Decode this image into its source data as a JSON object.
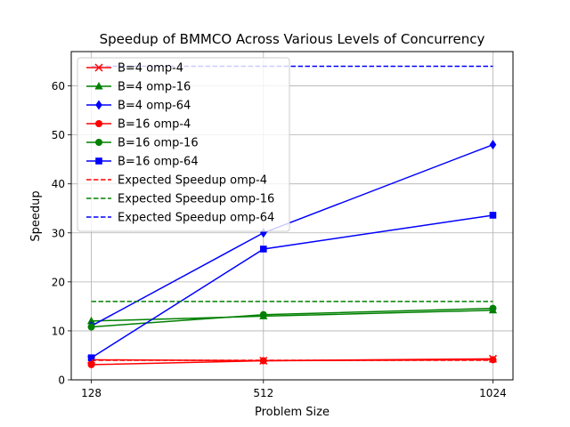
{
  "chart_data": {
    "type": "line",
    "title": "Speedup of BMMCO Across Various Levels of Concurrency",
    "xlabel": "Problem Size",
    "ylabel": "Speedup",
    "x": [
      128,
      512,
      1024
    ],
    "xticks": [
      "128",
      "512",
      "1024"
    ],
    "ylim": [
      0,
      67
    ],
    "yticks": [
      0,
      10,
      20,
      30,
      40,
      50,
      60
    ],
    "grid": true,
    "legend_position": "upper-left",
    "series": [
      {
        "name": "B=4 omp-4",
        "values": [
          4.1,
          3.9,
          4.3
        ],
        "color": "#ff0000",
        "marker": "x",
        "dash": false
      },
      {
        "name": "B=4 omp-16",
        "values": [
          12.0,
          13.0,
          14.2
        ],
        "color": "#008000",
        "marker": "triangle",
        "dash": false
      },
      {
        "name": "B=4 omp-64",
        "values": [
          11.0,
          30.0,
          48.0
        ],
        "color": "#0000ff",
        "marker": "diamond",
        "dash": false
      },
      {
        "name": "B=16 omp-4",
        "values": [
          3.1,
          3.9,
          4.1
        ],
        "color": "#ff0000",
        "marker": "circle",
        "dash": false
      },
      {
        "name": "B=16 omp-16",
        "values": [
          10.8,
          13.3,
          14.6
        ],
        "color": "#008000",
        "marker": "circle",
        "dash": false
      },
      {
        "name": "B=16 omp-64",
        "values": [
          4.5,
          26.7,
          33.6
        ],
        "color": "#0000ff",
        "marker": "square",
        "dash": false
      },
      {
        "name": "Expected Speedup omp-4",
        "values": [
          4,
          4,
          4
        ],
        "color": "#ff0000",
        "marker": "none",
        "dash": true
      },
      {
        "name": "Expected Speedup omp-16",
        "values": [
          16,
          16,
          16
        ],
        "color": "#008000",
        "marker": "none",
        "dash": true
      },
      {
        "name": "Expected Speedup omp-64",
        "values": [
          64,
          64,
          64
        ],
        "color": "#0000ff",
        "marker": "none",
        "dash": true
      }
    ]
  }
}
